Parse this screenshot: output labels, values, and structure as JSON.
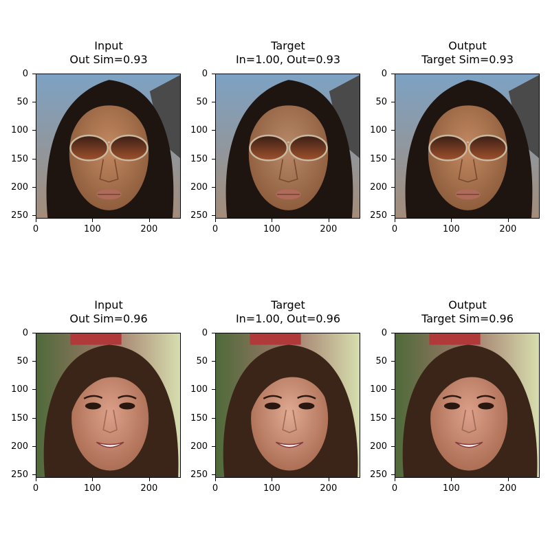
{
  "chart_data": [
    {
      "type": "image",
      "title": "Input",
      "subtitle": "Out Sim=0.93",
      "face": "face-with-sunglasses",
      "x_ticks": [
        "0",
        "100",
        "200"
      ],
      "y_ticks": [
        "0",
        "50",
        "100",
        "150",
        "200",
        "250"
      ],
      "xlim": [
        0,
        256
      ],
      "ylim": [
        256,
        0
      ]
    },
    {
      "type": "image",
      "title": "Target",
      "subtitle": "In=1.00, Out=0.93",
      "face": "face-with-sunglasses",
      "x_ticks": [
        "0",
        "100",
        "200"
      ],
      "y_ticks": [
        "0",
        "50",
        "100",
        "150",
        "200",
        "250"
      ],
      "xlim": [
        0,
        256
      ],
      "ylim": [
        256,
        0
      ]
    },
    {
      "type": "image",
      "title": "Output",
      "subtitle": "Target Sim=0.93",
      "face": "face-with-sunglasses",
      "x_ticks": [
        "0",
        "100",
        "200"
      ],
      "y_ticks": [
        "0",
        "50",
        "100",
        "150",
        "200",
        "250"
      ],
      "xlim": [
        0,
        256
      ],
      "ylim": [
        256,
        0
      ]
    },
    {
      "type": "image",
      "title": "Input",
      "subtitle": "Out Sim=0.96",
      "face": "smiling-face",
      "x_ticks": [
        "0",
        "100",
        "200"
      ],
      "y_ticks": [
        "0",
        "50",
        "100",
        "150",
        "200",
        "250"
      ],
      "xlim": [
        0,
        256
      ],
      "ylim": [
        256,
        0
      ]
    },
    {
      "type": "image",
      "title": "Target",
      "subtitle": "In=1.00, Out=0.96",
      "face": "smiling-face",
      "x_ticks": [
        "0",
        "100",
        "200"
      ],
      "y_ticks": [
        "0",
        "50",
        "100",
        "150",
        "200",
        "250"
      ],
      "xlim": [
        0,
        256
      ],
      "ylim": [
        256,
        0
      ]
    },
    {
      "type": "image",
      "title": "Output",
      "subtitle": "Target Sim=0.96",
      "face": "smiling-face",
      "x_ticks": [
        "0",
        "100",
        "200"
      ],
      "y_ticks": [
        "0",
        "50",
        "100",
        "150",
        "200",
        "250"
      ],
      "xlim": [
        0,
        256
      ],
      "ylim": [
        256,
        0
      ]
    }
  ]
}
